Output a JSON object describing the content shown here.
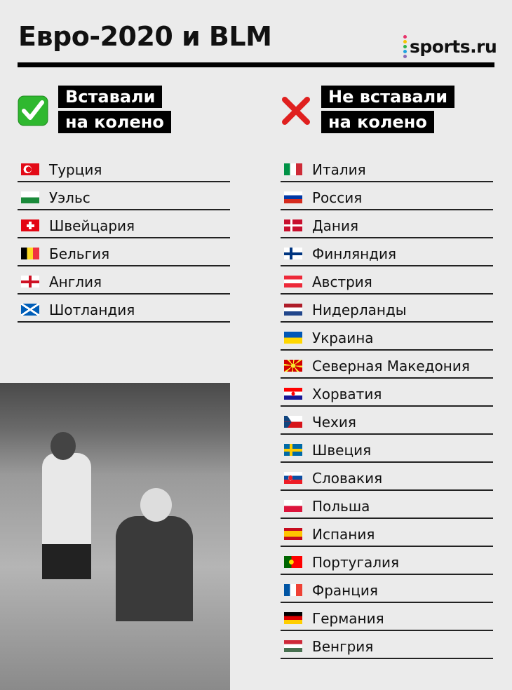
{
  "title": "Евро-2020 и BLM",
  "logo": {
    "text": "sports.ru",
    "dot_colors": [
      "#e8336b",
      "#f5c400",
      "#2fb34a",
      "#1fa3e0",
      "#8a6bb8"
    ]
  },
  "knelt": {
    "icon": "check-mark-icon",
    "line1": "Вставали",
    "line2": "на колено",
    "accent": "#2fb82f",
    "countries": [
      {
        "name": "Турция",
        "flag": "flag-turkey"
      },
      {
        "name": "Уэльс",
        "flag": "flag-wales"
      },
      {
        "name": "Швейцария",
        "flag": "flag-switzerland"
      },
      {
        "name": "Бельгия",
        "flag": "flag-belgium"
      },
      {
        "name": "Англия",
        "flag": "flag-england"
      },
      {
        "name": "Шотландия",
        "flag": "flag-scotland"
      }
    ]
  },
  "not_knelt": {
    "icon": "cross-mark-icon",
    "line1": "Не вставали",
    "line2": "на колено",
    "accent": "#e0201f",
    "countries": [
      {
        "name": "Италия",
        "flag": "flag-italy"
      },
      {
        "name": "Россия",
        "flag": "flag-russia"
      },
      {
        "name": "Дания",
        "flag": "flag-denmark"
      },
      {
        "name": "Финляндия",
        "flag": "flag-finland"
      },
      {
        "name": "Австрия",
        "flag": "flag-austria"
      },
      {
        "name": "Нидерланды",
        "flag": "flag-netherlands"
      },
      {
        "name": "Украина",
        "flag": "flag-ukraine"
      },
      {
        "name": "Северная Македония",
        "flag": "flag-north-macedonia"
      },
      {
        "name": "Хорватия",
        "flag": "flag-croatia"
      },
      {
        "name": "Чехия",
        "flag": "flag-czechia"
      },
      {
        "name": "Швеция",
        "flag": "flag-sweden"
      },
      {
        "name": "Словакия",
        "flag": "flag-slovakia"
      },
      {
        "name": "Польша",
        "flag": "flag-poland"
      },
      {
        "name": "Испания",
        "flag": "flag-spain"
      },
      {
        "name": "Португалия",
        "flag": "flag-portugal"
      },
      {
        "name": "Франция",
        "flag": "flag-france"
      },
      {
        "name": "Германия",
        "flag": "flag-germany"
      },
      {
        "name": "Венгрия",
        "flag": "flag-hungary"
      }
    ]
  },
  "photo": {
    "description_icon": "photo-players-kneeling"
  }
}
